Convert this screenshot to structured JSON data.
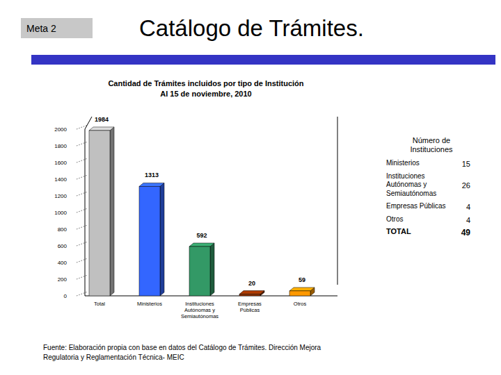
{
  "header": {
    "tag": "Meta 2",
    "title": "Catálogo de Trámites."
  },
  "chart_data": {
    "type": "bar",
    "title": "Cantidad de Trámites incluidos por tipo de Institución",
    "subtitle": "Al 15 de noviembre, 2010",
    "categories": [
      "Total",
      "Ministerios",
      "Instituciones Autónomas y Semiautónomas",
      "Empresas Públicas",
      "Otros"
    ],
    "values": [
      1984,
      1313,
      592,
      20,
      59
    ],
    "colors": [
      "#c0c0c0",
      "#3366ff",
      "#339966",
      "#993300",
      "#ff9900"
    ],
    "ylim": [
      0,
      2000
    ],
    "yticks": [
      0,
      200,
      400,
      600,
      800,
      1000,
      1200,
      1400,
      1600,
      1800,
      2000
    ],
    "grid": false,
    "data_labels": true
  },
  "table": {
    "title": "Número de Instituciones",
    "rows": [
      [
        "Ministerios",
        15
      ],
      [
        "Instituciones Autónomas y Semiautónomas",
        26
      ],
      [
        "Empresas Públicas",
        4
      ],
      [
        "Otros",
        4
      ],
      [
        "TOTAL",
        49
      ]
    ]
  },
  "footer": {
    "lines": [
      "Fuente: Elaboración propia con base en datos del Catálogo de Trámites. Dirección Mejora",
      "Regulatoria y Reglamentación Técnica- MEIC"
    ]
  }
}
